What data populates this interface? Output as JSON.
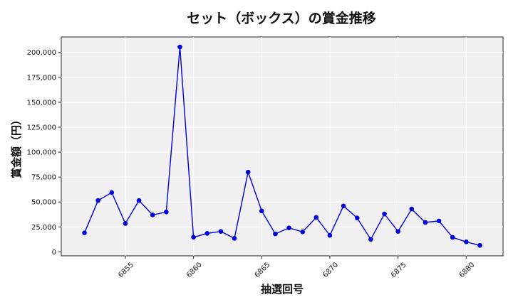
{
  "chart_data": {
    "type": "line",
    "title": "セット（ボックス）の賞金推移",
    "xlabel": "抽選回号",
    "ylabel": "賞金額（円）",
    "x": [
      6852,
      6853,
      6854,
      6855,
      6856,
      6857,
      6858,
      6859,
      6860,
      6861,
      6862,
      6863,
      6864,
      6865,
      6866,
      6867,
      6868,
      6869,
      6870,
      6871,
      6872,
      6873,
      6874,
      6875,
      6876,
      6877,
      6878,
      6879,
      6880,
      6881
    ],
    "series": [
      {
        "values": [
          19000,
          51500,
          59500,
          28500,
          51500,
          37000,
          40000,
          205500,
          14700,
          18500,
          20500,
          13500,
          80000,
          41000,
          18000,
          24000,
          20000,
          34500,
          16500,
          46000,
          34000,
          12500,
          38000,
          20500,
          43000,
          29500,
          31000,
          14500,
          10000,
          6500
        ],
        "color": "#0000dd"
      }
    ],
    "xticks": [
      "6855",
      "6860",
      "6865",
      "6870",
      "6875",
      "6880"
    ],
    "yticks": [
      "0",
      "25,000",
      "50,000",
      "75,000",
      "100,000",
      "125,000",
      "150,000",
      "175,000",
      "200,000"
    ],
    "xlim": [
      6850.3,
      6882.7
    ],
    "ylim": [
      -4000,
      215500
    ],
    "grid": true,
    "background": "#f0f0f0"
  }
}
